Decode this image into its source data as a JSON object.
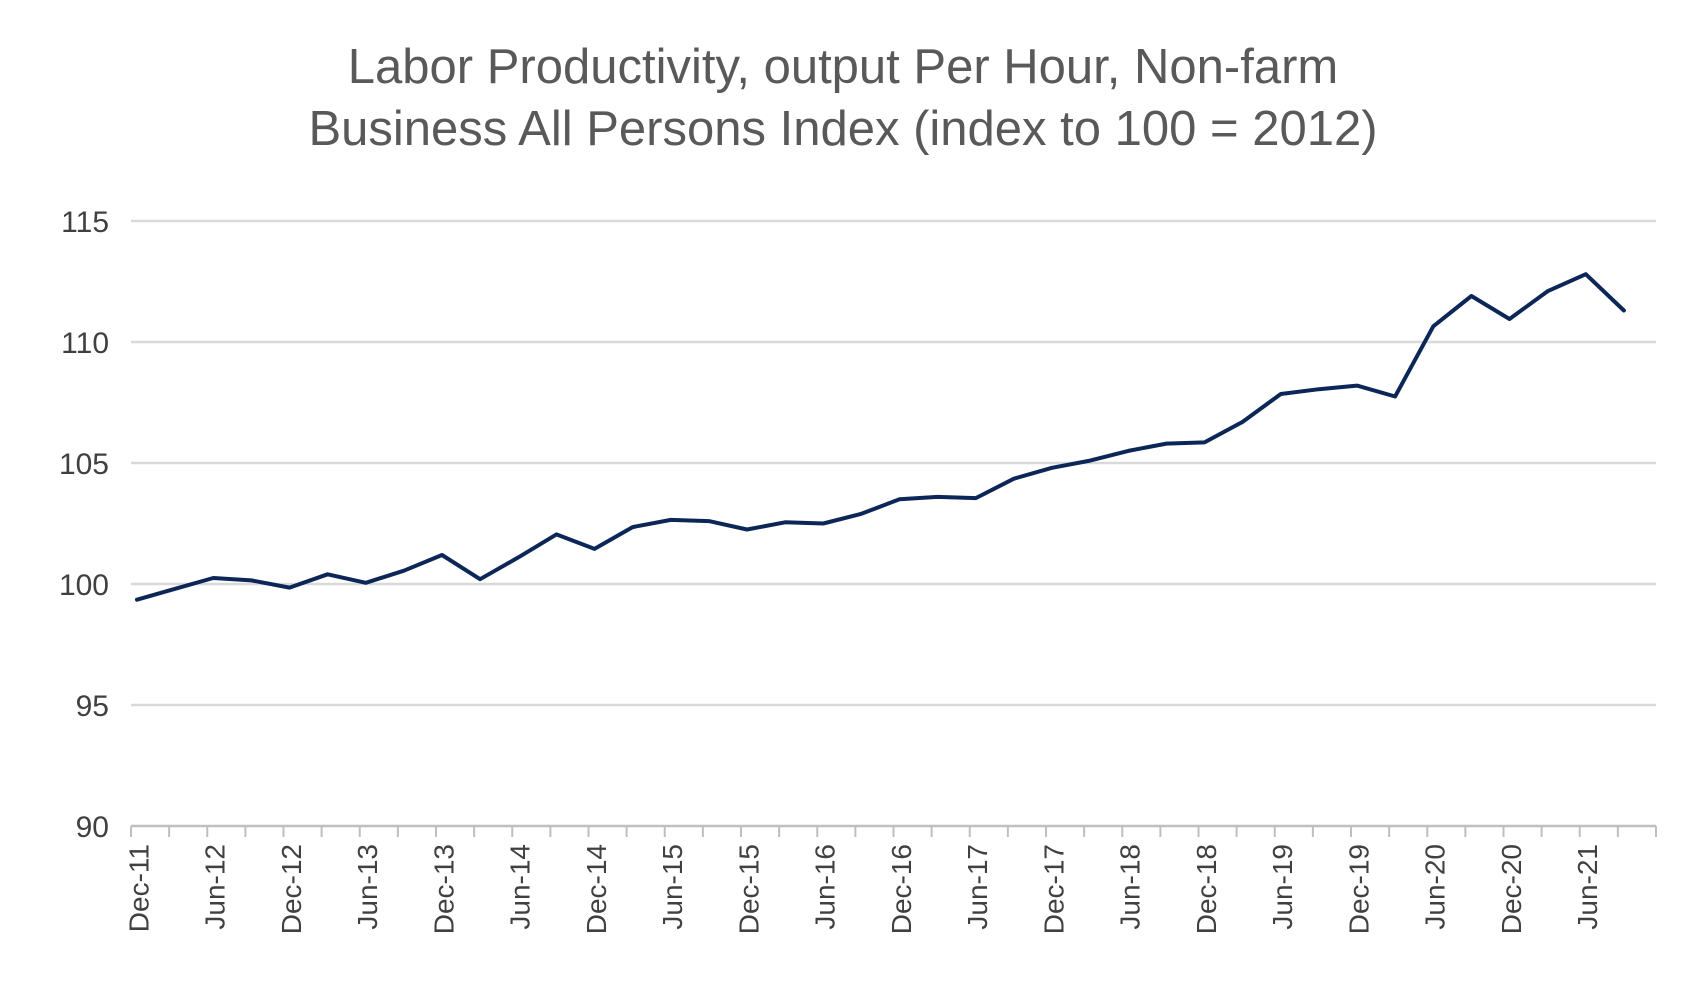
{
  "chart_data": {
    "type": "line",
    "title_lines": [
      "Labor Productivity, output Per Hour, Non-farm",
      "Business All Persons Index (index to 100 = 2012)"
    ],
    "xlabel": "",
    "ylabel": "",
    "ylim": [
      90,
      115
    ],
    "yticks": [
      90,
      95,
      100,
      105,
      110,
      115
    ],
    "grid": true,
    "legend": "none",
    "x": [
      "Dec-11",
      "Mar-12",
      "Jun-12",
      "Sep-12",
      "Dec-12",
      "Mar-13",
      "Jun-13",
      "Sep-13",
      "Dec-13",
      "Mar-14",
      "Jun-14",
      "Sep-14",
      "Dec-14",
      "Mar-15",
      "Jun-15",
      "Sep-15",
      "Dec-15",
      "Mar-16",
      "Jun-16",
      "Sep-16",
      "Dec-16",
      "Mar-17",
      "Jun-17",
      "Sep-17",
      "Dec-17",
      "Mar-18",
      "Jun-18",
      "Sep-18",
      "Dec-18",
      "Mar-19",
      "Jun-19",
      "Sep-19",
      "Dec-19",
      "Mar-20",
      "Jun-20",
      "Sep-20",
      "Dec-20",
      "Mar-21",
      "Jun-21",
      "Sep-21"
    ],
    "x_tick_labels": [
      "Dec-11",
      "Jun-12",
      "Dec-12",
      "Jun-13",
      "Dec-13",
      "Jun-14",
      "Dec-14",
      "Jun-15",
      "Dec-15",
      "Jun-16",
      "Dec-16",
      "Jun-17",
      "Dec-17",
      "Jun-18",
      "Dec-18",
      "Jun-19",
      "Dec-19",
      "Jun-20",
      "Dec-20",
      "Jun-21"
    ],
    "series": [
      {
        "color": "#0c2657",
        "values": [
          99.35,
          99.8,
          100.25,
          100.15,
          99.85,
          100.4,
          100.05,
          100.55,
          101.2,
          100.2,
          101.1,
          102.05,
          101.45,
          102.35,
          102.65,
          102.6,
          102.25,
          102.55,
          102.5,
          102.9,
          103.5,
          103.6,
          103.55,
          104.35,
          104.8,
          105.1,
          105.5,
          105.8,
          105.85,
          106.7,
          107.85,
          108.05,
          108.2,
          107.75,
          110.65,
          111.9,
          110.95,
          112.1,
          112.8,
          111.3
        ]
      }
    ]
  }
}
